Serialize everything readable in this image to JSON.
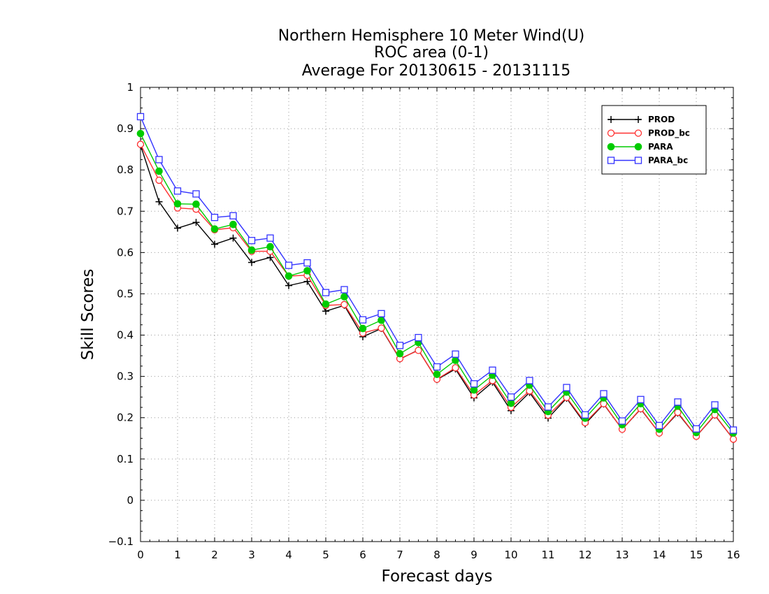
{
  "chart_data": {
    "type": "line",
    "title": [
      "Northern Hemisphere 10 Meter Wind(U)",
      "ROC area (0-1)",
      "Average For 20130615 - 20131115"
    ],
    "xlabel": "Forecast days",
    "ylabel": "Skill Scores",
    "xlim": [
      0,
      16
    ],
    "ylim": [
      -0.1,
      1
    ],
    "xticks": [
      0,
      1,
      2,
      3,
      4,
      5,
      6,
      7,
      8,
      9,
      10,
      11,
      12,
      13,
      14,
      15,
      16
    ],
    "yticks": [
      -0.1,
      0,
      0.1,
      0.2,
      0.3,
      0.4,
      0.5,
      0.6,
      0.7,
      0.8,
      0.9,
      1
    ],
    "ytick_labels": [
      "−0.1",
      "0",
      "0.1",
      "0.2",
      "0.3",
      "0.4",
      "0.5",
      "0.6",
      "0.7",
      "0.8",
      "0.9",
      "1"
    ],
    "grid": true,
    "legend_position": "top-right",
    "x": [
      0,
      0.5,
      1,
      1.5,
      2,
      2.5,
      3,
      3.5,
      4,
      4.5,
      5,
      5.5,
      6,
      6.5,
      7,
      7.5,
      8,
      8.5,
      9,
      9.5,
      10,
      10.5,
      11,
      11.5,
      12,
      12.5,
      13,
      13.5,
      14,
      14.5,
      15,
      15.5,
      16
    ],
    "series": [
      {
        "name": "PROD",
        "color": "#000000",
        "marker": "plus",
        "values": [
          0.86,
          0.723,
          0.659,
          0.673,
          0.62,
          0.635,
          0.576,
          0.588,
          0.52,
          0.53,
          0.458,
          0.472,
          0.396,
          0.416,
          0.342,
          0.364,
          0.292,
          0.318,
          0.248,
          0.286,
          0.217,
          0.261,
          0.199,
          0.247,
          0.185,
          0.233,
          0.172,
          0.221,
          0.163,
          0.211,
          0.155,
          0.206,
          0.148
        ]
      },
      {
        "name": "PROD_bc",
        "color": "#ff3030",
        "marker": "open-circle",
        "values": [
          0.862,
          0.775,
          0.708,
          0.705,
          0.655,
          0.66,
          0.603,
          0.603,
          0.543,
          0.545,
          0.472,
          0.474,
          0.405,
          0.417,
          0.343,
          0.363,
          0.293,
          0.321,
          0.255,
          0.29,
          0.225,
          0.265,
          0.206,
          0.249,
          0.188,
          0.234,
          0.172,
          0.222,
          0.163,
          0.213,
          0.155,
          0.207,
          0.148
        ]
      },
      {
        "name": "PARA",
        "color": "#00cc00",
        "marker": "filled-circle",
        "values": [
          0.888,
          0.797,
          0.718,
          0.717,
          0.657,
          0.668,
          0.606,
          0.614,
          0.543,
          0.556,
          0.475,
          0.493,
          0.416,
          0.436,
          0.355,
          0.382,
          0.305,
          0.339,
          0.267,
          0.303,
          0.235,
          0.279,
          0.215,
          0.262,
          0.199,
          0.248,
          0.183,
          0.234,
          0.172,
          0.228,
          0.164,
          0.22,
          0.163
        ]
      },
      {
        "name": "PARA_bc",
        "color": "#3333ff",
        "marker": "open-square",
        "values": [
          0.929,
          0.825,
          0.749,
          0.742,
          0.685,
          0.689,
          0.629,
          0.635,
          0.569,
          0.575,
          0.503,
          0.51,
          0.437,
          0.452,
          0.375,
          0.394,
          0.323,
          0.354,
          0.282,
          0.315,
          0.25,
          0.29,
          0.226,
          0.273,
          0.207,
          0.258,
          0.192,
          0.244,
          0.181,
          0.238,
          0.173,
          0.231,
          0.17
        ]
      }
    ]
  }
}
